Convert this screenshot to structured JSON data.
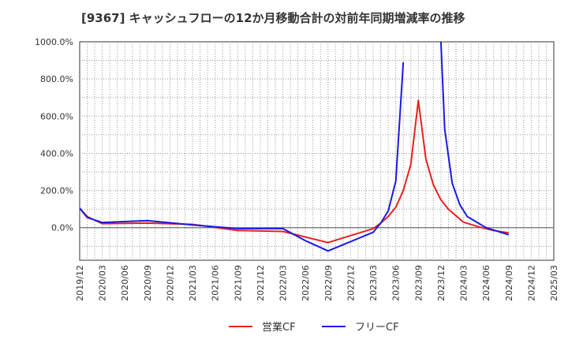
{
  "chart_data": {
    "type": "line",
    "title": "[9367]  キャッシュフローの12か月移動合計の対前年同期増減率の推移",
    "xlabel": "",
    "ylabel": "",
    "ylim": [
      -175,
      1000
    ],
    "yticks": [
      0,
      200,
      400,
      600,
      800,
      1000
    ],
    "ytick_labels": [
      "0.0%",
      "200.0%",
      "400.0%",
      "600.0%",
      "800.0%",
      "1000.0%"
    ],
    "xtick_labels": [
      "2019/12",
      "2020/03",
      "2020/06",
      "2020/09",
      "2020/12",
      "2021/03",
      "2021/06",
      "2021/09",
      "2021/12",
      "2022/03",
      "2022/06",
      "2022/09",
      "2022/12",
      "2023/03",
      "2023/06",
      "2023/09",
      "2023/12",
      "2024/03",
      "2024/06",
      "2024/09",
      "2024/12",
      "2025/03"
    ],
    "grid": true,
    "legend_position": "bottom",
    "series": [
      {
        "name": "営業CF",
        "color": "#e8201e",
        "points": [
          [
            0,
            105
          ],
          [
            1,
            60
          ],
          [
            3,
            22
          ],
          [
            9,
            25
          ],
          [
            15,
            18
          ],
          [
            21,
            -15
          ],
          [
            27,
            -20
          ],
          [
            33,
            -80
          ],
          [
            39,
            -5
          ],
          [
            40,
            25
          ],
          [
            41,
            60
          ],
          [
            42,
            110
          ],
          [
            43,
            200
          ],
          [
            44,
            340
          ],
          [
            45,
            685
          ],
          [
            46,
            370
          ],
          [
            47,
            230
          ],
          [
            48,
            150
          ],
          [
            49,
            100
          ],
          [
            51,
            30
          ],
          [
            53,
            5
          ],
          [
            55,
            -15
          ],
          [
            57,
            -28
          ]
        ]
      },
      {
        "name": "フリーCF",
        "color": "#1a1ae6",
        "points": [
          [
            0,
            105
          ],
          [
            1,
            55
          ],
          [
            3,
            28
          ],
          [
            9,
            38
          ],
          [
            15,
            15
          ],
          [
            21,
            -5
          ],
          [
            27,
            -5
          ],
          [
            30,
            -70
          ],
          [
            33,
            -125
          ],
          [
            39,
            -25
          ],
          [
            40,
            25
          ],
          [
            41,
            90
          ],
          [
            42,
            250
          ],
          [
            43,
            890
          ],
          [
            null,
            null
          ],
          [
            48,
            1000
          ],
          [
            48.5,
            530
          ],
          [
            49.5,
            240
          ],
          [
            50.5,
            125
          ],
          [
            51.5,
            60
          ],
          [
            54,
            0
          ],
          [
            57,
            -38
          ]
        ]
      }
    ]
  }
}
